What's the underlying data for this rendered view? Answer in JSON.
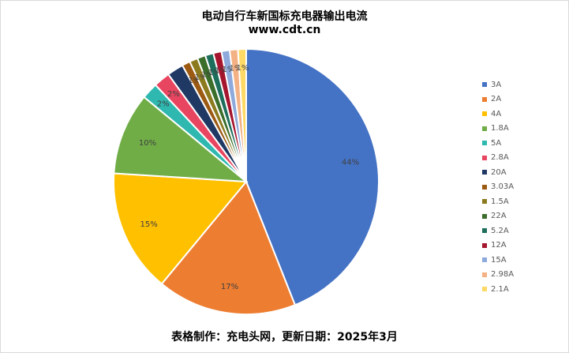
{
  "title": "电动自行车新国标充电器输出电流",
  "subtitle": "www.cdt.cn",
  "footer": "表格制作：充电头网，更新日期：2025年3月",
  "chart_data": {
    "type": "pie",
    "title": "电动自行车新国标充电器输出电流",
    "subtitle": "www.cdt.cn",
    "legend_position": "right",
    "slices": [
      {
        "label": "3A",
        "value": 44,
        "display": "44%",
        "color": "#4472C4"
      },
      {
        "label": "2A",
        "value": 17,
        "display": "17%",
        "color": "#ED7D31"
      },
      {
        "label": "4A",
        "value": 15,
        "display": "15%",
        "color": "#FFC000"
      },
      {
        "label": "1.8A",
        "value": 10,
        "display": "10%",
        "color": "#70AD47"
      },
      {
        "label": "5A",
        "value": 2,
        "display": "2%",
        "color": "#2EB8B0"
      },
      {
        "label": "2.8A",
        "value": 2,
        "display": "2%",
        "color": "#E84560"
      },
      {
        "label": "20A",
        "value": 2,
        "display": "",
        "color": "#1F3864"
      },
      {
        "label": "3.03A",
        "value": 1,
        "display": "1%",
        "color": "#9C5A12"
      },
      {
        "label": "1.5A",
        "value": 1,
        "display": "1%",
        "color": "#8C7A1E"
      },
      {
        "label": "22A",
        "value": 1,
        "display": "1%",
        "color": "#3B6E2A"
      },
      {
        "label": "5.2A",
        "value": 1,
        "display": "1%",
        "color": "#1E6E5C"
      },
      {
        "label": "12A",
        "value": 1,
        "display": "1%",
        "color": "#A5152E"
      },
      {
        "label": "15A",
        "value": 1,
        "display": "1%",
        "color": "#8EA9DB"
      },
      {
        "label": "2.98A",
        "value": 1,
        "display": "1%",
        "color": "#F4B183"
      },
      {
        "label": "2.1A",
        "value": 1,
        "display": "1%",
        "color": "#FFD966"
      }
    ]
  }
}
